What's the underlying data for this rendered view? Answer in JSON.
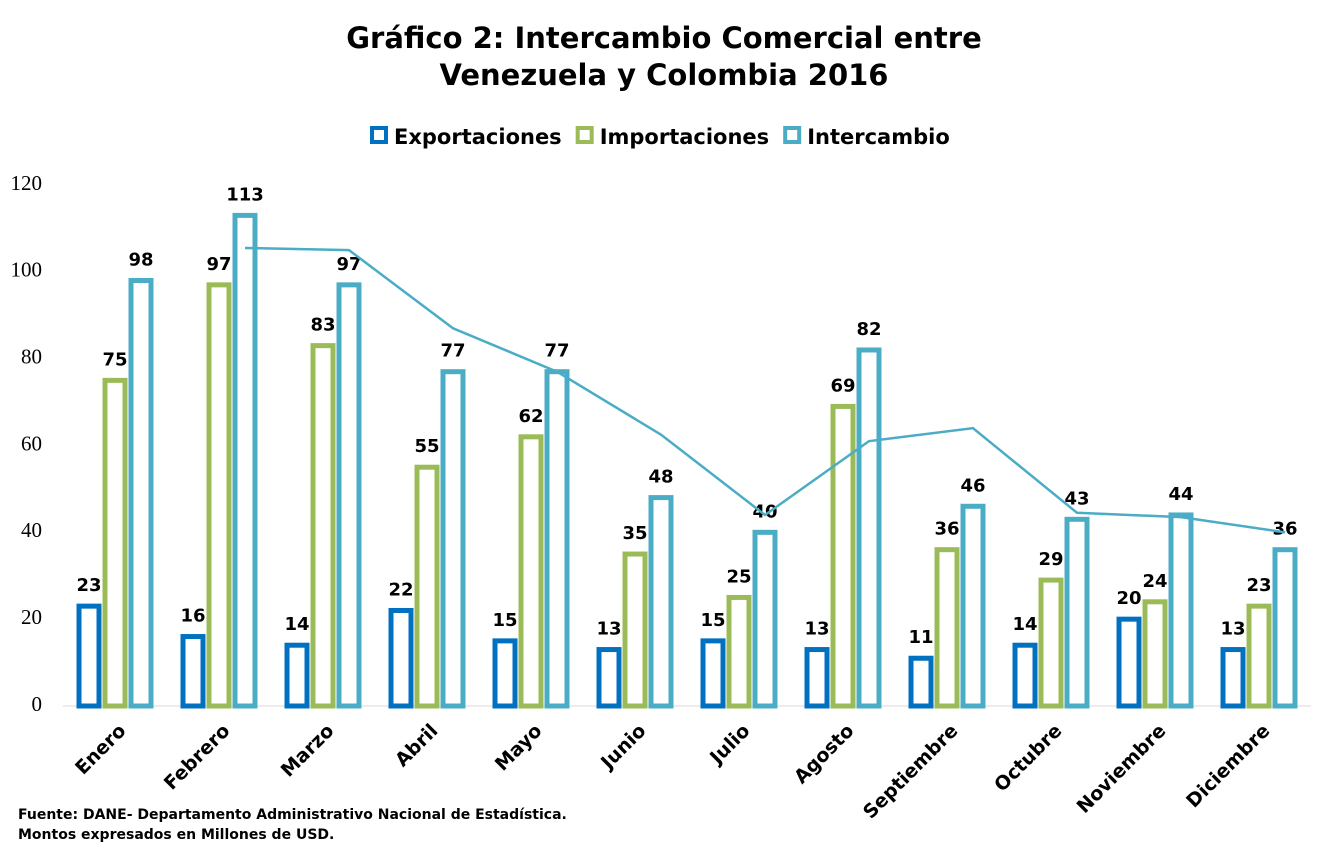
{
  "chart_data": {
    "type": "bar",
    "title": [
      "Gráfico 2: Intercambio Comercial entre",
      "Venezuela y Colombia 2016"
    ],
    "categories": [
      "Enero",
      "Febrero",
      "Marzo",
      "Abril",
      "Mayo",
      "Junio",
      "Julio",
      "Agosto",
      "Septiembre",
      "Octubre",
      "Noviembre",
      "Diciembre"
    ],
    "series": [
      {
        "name": "Exportaciones",
        "color": "#0070c0",
        "values": [
          23,
          16,
          14,
          22,
          15,
          13,
          15,
          13,
          11,
          14,
          20,
          13
        ]
      },
      {
        "name": "Importaciones",
        "color": "#9bbb59",
        "values": [
          75,
          97,
          83,
          55,
          62,
          35,
          25,
          69,
          36,
          29,
          24,
          23
        ]
      },
      {
        "name": "Intercambio",
        "color": "#4bacc6",
        "values": [
          98,
          113,
          97,
          77,
          77,
          48,
          40,
          82,
          46,
          43,
          44,
          36
        ]
      }
    ],
    "trendline": {
      "color": "#4bacc6",
      "values": [
        null,
        105.5,
        105,
        87,
        77,
        62.5,
        44,
        61,
        64,
        44.5,
        43.5,
        40
      ]
    },
    "ylim": [
      0,
      120
    ],
    "yticks": [
      0,
      20,
      40,
      60,
      80,
      100,
      120
    ],
    "legend": "top",
    "notes": [
      "Fuente: DANE- Departamento Administrativo Nacional de Estadística.",
      "Montos expresados en Millones de USD."
    ]
  }
}
